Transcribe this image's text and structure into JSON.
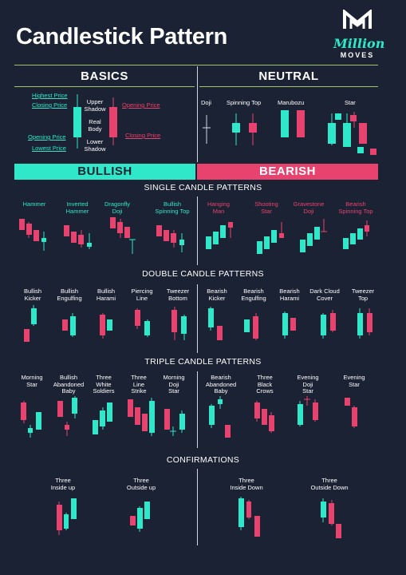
{
  "title": "Candlestick Pattern",
  "logo": {
    "script": "Million",
    "moves": "MOVES"
  },
  "colors": {
    "bull": "#2ee8c9",
    "bear": "#e8436e",
    "bg": "#1b2233"
  },
  "basics": {
    "header": "BASICS",
    "highest_price": "Highest Price",
    "closing_price_left": "Closing Price",
    "opening_price_left": "Opening Price",
    "lowest_price": "Lowest Price",
    "upper_shadow": "Upper\nShadow",
    "real_body": "Real\nBody",
    "lower_shadow": "Lower\nShadow",
    "opening_price_right": "Opening Price",
    "closing_price_right": "Closing Price"
  },
  "neutral": {
    "header": "NEUTRAL",
    "items": [
      "Doji",
      "Spinning Top",
      "Marubozu",
      "Star"
    ]
  },
  "bands": {
    "bullish": "BULLISH",
    "bearish": "BEARISH"
  },
  "sections": {
    "single": "SINGLE CANDLE PATTERNS",
    "double": "DOUBLE CANDLE PATTERNS",
    "triple": "TRIPLE CANDLE PATTERNS",
    "confirm": "CONFIRMATIONS"
  },
  "single_bull": [
    "Hammer",
    "Inverted\nHammer",
    "Dragonfly\nDoji",
    "Bullish\nSpinning Top"
  ],
  "single_bear": [
    "Hanging\nMan",
    "Shooting\nStar",
    "Gravestone\nDoji",
    "Bearish\nSpinning Top"
  ],
  "double_bull": [
    "Bullish\nKicker",
    "Bullish\nEngulfing",
    "Bullish\nHarami",
    "Piercing\nLine",
    "Tweezer\nBottom"
  ],
  "double_bear": [
    "Bearish\nKicker",
    "Bearish\nEngulfing",
    "Bearish\nHarami",
    "Dark Cloud\nCover",
    "Tweezer\nTop"
  ],
  "triple_bull": [
    "Morning\nStar",
    "Bullish\nAbandoned\nBaby",
    "Three\nWhite\nSoldiers",
    "Three\nLine\nStrike",
    "Morning\nDoji\nStar"
  ],
  "triple_bear": [
    "Bearish\nAbandoned\nBaby",
    "Three\nBlack\nCrows",
    "Evening\nDoji\nStar",
    "Evening\nStar"
  ],
  "confirm_bull": [
    "Three\nInside up",
    "Three\nOutside up"
  ],
  "confirm_bear": [
    "Three\nInside Down",
    "Three\nOutside Down"
  ]
}
